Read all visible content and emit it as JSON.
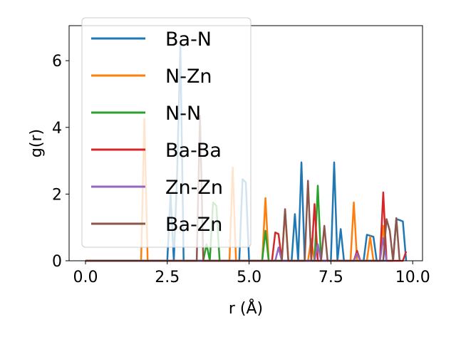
{
  "chart_data": {
    "type": "line",
    "xlabel": "r (Å)",
    "ylabel": "g(r)",
    "xlim": [
      -0.5,
      10.3
    ],
    "ylim": [
      0,
      7.05
    ],
    "xticks": [
      0.0,
      2.5,
      5.0,
      7.5,
      10.0
    ],
    "xtick_labels": [
      "0.0",
      "2.5",
      "5.0",
      "7.5",
      "10.0"
    ],
    "yticks": [
      0,
      2,
      4,
      6
    ],
    "ytick_labels": [
      "0",
      "2",
      "4",
      "6"
    ],
    "grid": false,
    "legend_position": "top-left",
    "series": [
      {
        "name": "Ba-N",
        "color": "#1f77b4",
        "points": [
          [
            0,
            0
          ],
          [
            2.5,
            0
          ],
          [
            2.6,
            2.0
          ],
          [
            2.7,
            0
          ],
          [
            2.8,
            2.6
          ],
          [
            2.9,
            6.45
          ],
          [
            3.0,
            0
          ],
          [
            4.7,
            0
          ],
          [
            4.8,
            2.45
          ],
          [
            4.9,
            2.35
          ],
          [
            5.0,
            0
          ],
          [
            6.3,
            0
          ],
          [
            6.4,
            1.4
          ],
          [
            6.5,
            0
          ],
          [
            6.6,
            2.95
          ],
          [
            6.7,
            0
          ],
          [
            7.5,
            0
          ],
          [
            7.6,
            2.95
          ],
          [
            7.7,
            0
          ],
          [
            7.8,
            0.95
          ],
          [
            7.9,
            0
          ],
          [
            8.5,
            0
          ],
          [
            8.6,
            0.78
          ],
          [
            8.8,
            0.72
          ],
          [
            8.9,
            0
          ],
          [
            9.4,
            0
          ],
          [
            9.5,
            1.25
          ],
          [
            9.6,
            1.22
          ],
          [
            9.7,
            1.18
          ],
          [
            9.8,
            0
          ]
        ]
      },
      {
        "name": "N-Zn",
        "color": "#ff7f0e",
        "points": [
          [
            0,
            0
          ],
          [
            1.7,
            0
          ],
          [
            1.8,
            4.25
          ],
          [
            1.9,
            0
          ],
          [
            4.4,
            0
          ],
          [
            4.5,
            2.8
          ],
          [
            4.6,
            0
          ],
          [
            5.4,
            0
          ],
          [
            5.5,
            1.88
          ],
          [
            5.6,
            0
          ],
          [
            6.0,
            0
          ],
          [
            6.1,
            1.5
          ],
          [
            6.2,
            0
          ],
          [
            6.8,
            0
          ],
          [
            6.9,
            0.65
          ],
          [
            7.0,
            0
          ],
          [
            8.1,
            0
          ],
          [
            8.2,
            1.75
          ],
          [
            8.3,
            0
          ],
          [
            8.6,
            0
          ],
          [
            8.7,
            0.72
          ],
          [
            8.8,
            0
          ],
          [
            9.0,
            0
          ],
          [
            9.1,
            1.05
          ],
          [
            9.2,
            0
          ]
        ]
      },
      {
        "name": "N-N",
        "color": "#2ca02c",
        "points": [
          [
            0,
            0
          ],
          [
            3.6,
            0
          ],
          [
            3.7,
            0.5
          ],
          [
            3.8,
            0
          ],
          [
            3.9,
            1.75
          ],
          [
            4.0,
            1.65
          ],
          [
            4.1,
            0
          ],
          [
            5.4,
            0
          ],
          [
            5.5,
            0.9
          ],
          [
            5.6,
            0
          ],
          [
            7.0,
            0
          ],
          [
            7.1,
            2.25
          ],
          [
            7.2,
            0
          ]
        ]
      },
      {
        "name": "Ba-Ba",
        "color": "#d62728",
        "points": [
          [
            0,
            0
          ],
          [
            5.7,
            0
          ],
          [
            5.8,
            0.85
          ],
          [
            5.9,
            0.8
          ],
          [
            6.0,
            0
          ],
          [
            6.9,
            0
          ],
          [
            7.0,
            1.7
          ],
          [
            7.1,
            0
          ],
          [
            8.2,
            0
          ],
          [
            8.3,
            0.3
          ],
          [
            8.4,
            0
          ],
          [
            9.0,
            0
          ],
          [
            9.1,
            2.05
          ],
          [
            9.2,
            0
          ],
          [
            9.7,
            0
          ],
          [
            9.8,
            0.28
          ]
        ]
      },
      {
        "name": "Zn-Zn",
        "color": "#9467bd",
        "points": [
          [
            0,
            0
          ],
          [
            5.8,
            0
          ],
          [
            5.9,
            0.4
          ],
          [
            6.0,
            0
          ],
          [
            7.0,
            0
          ],
          [
            7.1,
            0.5
          ],
          [
            7.2,
            0
          ],
          [
            8.2,
            0
          ],
          [
            8.3,
            0.22
          ],
          [
            8.4,
            0
          ],
          [
            9.0,
            0
          ],
          [
            9.1,
            0.68
          ],
          [
            9.2,
            0
          ]
        ]
      },
      {
        "name": "Ba-Zn",
        "color": "#8c564b",
        "points": [
          [
            0,
            0
          ],
          [
            3.4,
            0
          ],
          [
            3.5,
            4.35
          ],
          [
            3.6,
            0
          ],
          [
            6.0,
            0
          ],
          [
            6.1,
            1.55
          ],
          [
            6.2,
            0
          ],
          [
            6.7,
            0
          ],
          [
            6.8,
            2.4
          ],
          [
            6.9,
            0
          ],
          [
            7.2,
            0
          ],
          [
            7.3,
            1.05
          ],
          [
            7.4,
            0
          ],
          [
            9.1,
            0
          ],
          [
            9.2,
            1.25
          ],
          [
            9.3,
            0.9
          ],
          [
            9.4,
            0
          ],
          [
            9.5,
            1.28
          ],
          [
            9.6,
            0
          ]
        ]
      }
    ]
  }
}
